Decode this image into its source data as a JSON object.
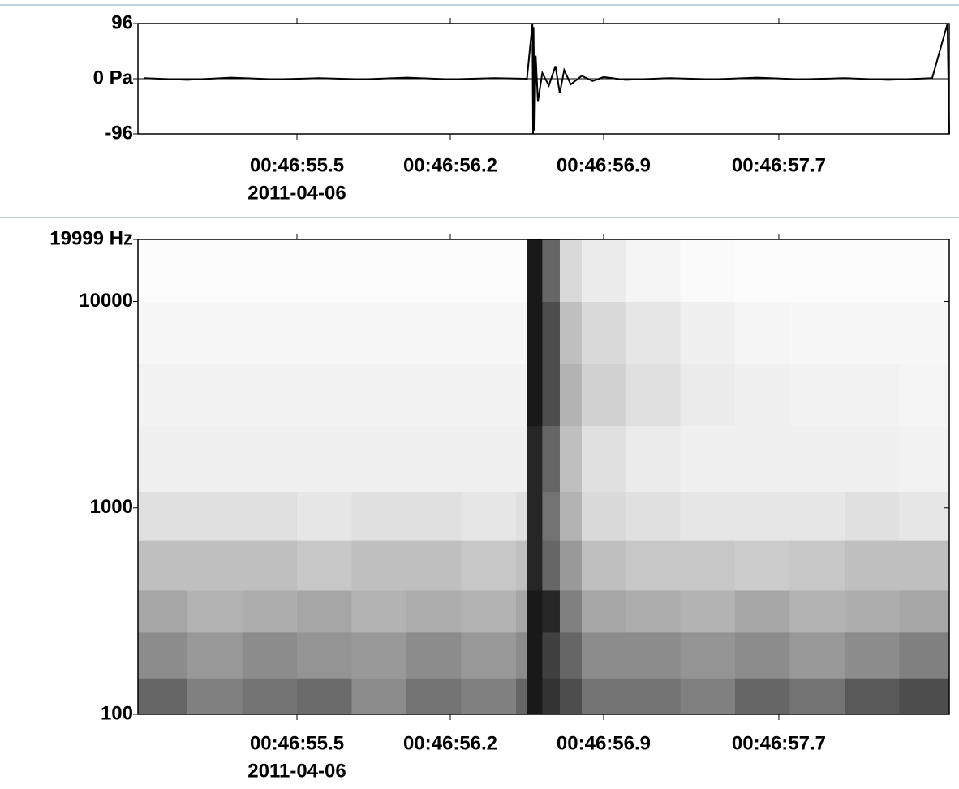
{
  "chart_data": [
    {
      "type": "line",
      "color": "#000000",
      "x": [
        54.8,
        55.0,
        55.2,
        55.4,
        55.6,
        55.8,
        56.0,
        56.2,
        56.4,
        56.55,
        56.575,
        56.578,
        56.58,
        56.585,
        56.59,
        56.6,
        56.62,
        56.65,
        56.68,
        56.7,
        56.72,
        56.75,
        56.8,
        56.85,
        56.9,
        57.0,
        57.2,
        57.4,
        57.6,
        57.8,
        58.0,
        58.2,
        58.4,
        58.47,
        58.478
      ],
      "y": [
        1,
        -2,
        2,
        -1,
        1,
        -1,
        2,
        -1,
        1,
        0,
        96,
        -96,
        90,
        -90,
        40,
        -40,
        10,
        -12,
        22,
        -25,
        15,
        -10,
        5,
        -4,
        3,
        -2,
        1,
        -1,
        2,
        -1,
        1,
        -2,
        1,
        96,
        -96
      ],
      "xlim": [
        54.774,
        58.478
      ],
      "xticks": [
        {
          "value": 55.5,
          "label": "00:46:55.5"
        },
        {
          "value": 56.2,
          "label": "00:46:56.2"
        },
        {
          "value": 56.9,
          "label": "00:46:56.9"
        },
        {
          "value": 57.7,
          "label": "00:46:57.7"
        }
      ],
      "date_label": "2011-04-06",
      "ylim": [
        -96,
        96
      ],
      "yticks": [
        96,
        {
          "value": 0,
          "label": "0 Pa"
        },
        -96
      ]
    },
    {
      "type": "heatmap",
      "x_edges": [
        54.774,
        55.0,
        55.25,
        55.5,
        55.75,
        56.0,
        56.25,
        56.5,
        56.55,
        56.62,
        56.7,
        56.8,
        57.0,
        57.25,
        57.5,
        57.75,
        58.0,
        58.25,
        58.478
      ],
      "y_edges": [
        100,
        150,
        250,
        400,
        700,
        1200,
        2500,
        5000,
        10000,
        19999
      ],
      "values": [
        [
          60,
          50,
          55,
          58,
          45,
          55,
          50,
          60,
          90,
          80,
          70,
          55,
          55,
          50,
          60,
          55,
          65,
          70
        ],
        [
          45,
          40,
          45,
          42,
          40,
          45,
          40,
          45,
          90,
          75,
          60,
          45,
          45,
          42,
          45,
          40,
          45,
          50
        ],
        [
          35,
          30,
          32,
          35,
          30,
          32,
          30,
          35,
          90,
          85,
          50,
          35,
          32,
          30,
          35,
          30,
          32,
          35
        ],
        [
          25,
          25,
          25,
          22,
          25,
          25,
          22,
          25,
          85,
          60,
          40,
          25,
          22,
          22,
          20,
          22,
          25,
          25
        ],
        [
          12,
          12,
          12,
          10,
          12,
          12,
          10,
          12,
          85,
          55,
          30,
          15,
          12,
          10,
          10,
          10,
          12,
          10
        ],
        [
          6,
          6,
          6,
          6,
          6,
          6,
          6,
          6,
          85,
          60,
          25,
          12,
          8,
          6,
          6,
          6,
          6,
          5
        ],
        [
          5,
          5,
          5,
          5,
          5,
          5,
          5,
          5,
          90,
          70,
          30,
          18,
          12,
          8,
          6,
          5,
          5,
          4
        ],
        [
          3,
          3,
          3,
          3,
          3,
          3,
          3,
          3,
          90,
          70,
          25,
          15,
          10,
          6,
          4,
          3,
          3,
          3
        ],
        [
          1,
          1,
          1,
          1,
          1,
          1,
          1,
          1,
          90,
          60,
          15,
          8,
          4,
          2,
          1,
          1,
          1,
          1
        ]
      ],
      "xlim": [
        54.774,
        58.478
      ],
      "xticks": [
        {
          "value": 55.5,
          "label": "00:46:55.5"
        },
        {
          "value": 56.2,
          "label": "00:46:56.2"
        },
        {
          "value": 56.9,
          "label": "00:46:56.9"
        },
        {
          "value": 57.7,
          "label": "00:46:57.7"
        }
      ],
      "date_label": "2011-04-06",
      "ylim": [
        100,
        19999
      ],
      "ylog": true,
      "yticks": [
        100,
        1000,
        10000,
        {
          "value": 19999,
          "label": "19999 Hz"
        }
      ]
    }
  ]
}
